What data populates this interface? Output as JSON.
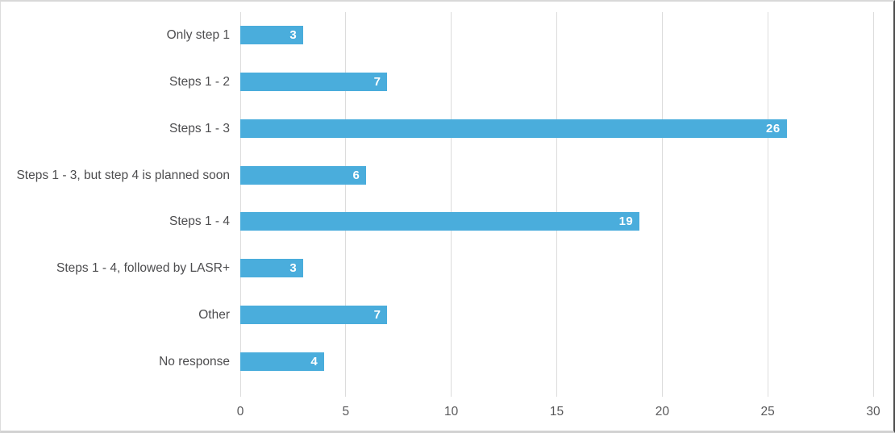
{
  "chart_data": {
    "type": "bar",
    "orientation": "horizontal",
    "title": "",
    "xlabel": "",
    "ylabel": "",
    "categories": [
      "Only step 1",
      "Steps 1 - 2",
      "Steps 1 - 3",
      "Steps 1 - 3, but step 4 is planned soon",
      "Steps 1 - 4",
      "Steps 1 - 4, followed by LASR+",
      "Other",
      "No response"
    ],
    "values": [
      3,
      7,
      26,
      6,
      19,
      3,
      7,
      4
    ],
    "data_labels_shown": true,
    "xlim": [
      0,
      30
    ],
    "xticks": [
      0,
      5,
      10,
      15,
      20,
      25,
      30
    ],
    "grid": "vertical-only",
    "legend": "none",
    "colors": {
      "bar": "#4aaddc",
      "value_label": "#ffffff",
      "category_label": "#4d4d4f",
      "tick_label": "#58585a",
      "gridline": "#dcdcdc",
      "background": "#ffffff"
    }
  }
}
